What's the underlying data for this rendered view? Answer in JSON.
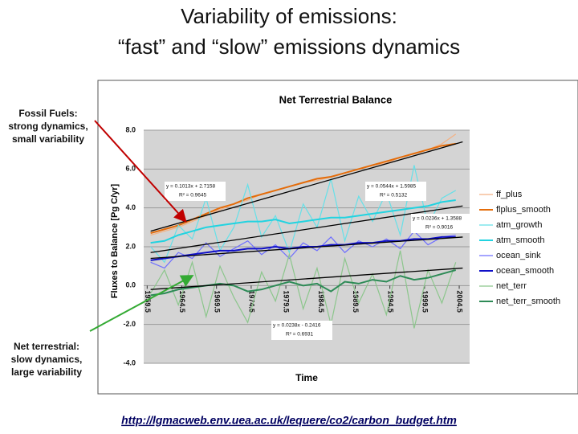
{
  "slide": {
    "title": [
      "Variability of emissions:",
      "“fast” and “slow” emissions dynamics"
    ],
    "note_top": [
      "Fossil Fuels:",
      "strong dynamics,",
      "small variability"
    ],
    "note_bottom": [
      "Net terrestrial:",
      "slow dynamics,",
      "large variability"
    ],
    "link": "http://lgmacweb.env.uea.ac.uk/lequere/co2/carbon_budget.htm"
  },
  "chart_data": {
    "type": "line",
    "title": "Net Terrestrial Balance",
    "x_label": "Time",
    "y_label": "Fluxes to Balance [Pg C/yr]",
    "x": [
      1960,
      1962,
      1964,
      1966,
      1968,
      1970,
      1972,
      1974,
      1976,
      1978,
      1980,
      1982,
      1984,
      1986,
      1988,
      1990,
      1992,
      1994,
      1996,
      1998,
      2000,
      2002,
      2004
    ],
    "series": [
      {
        "name": "ff_plus",
        "color": "#f4b183",
        "values": [
          2.6,
          2.8,
          3.0,
          3.3,
          3.6,
          3.9,
          4.2,
          4.4,
          4.7,
          4.9,
          5.1,
          5.3,
          5.4,
          5.6,
          5.8,
          6.0,
          6.2,
          6.3,
          6.6,
          6.8,
          7.0,
          7.3,
          7.8
        ]
      },
      {
        "name": "flplus_smooth",
        "color": "#e46c0a",
        "values": [
          2.7,
          2.9,
          3.1,
          3.4,
          3.7,
          4.0,
          4.2,
          4.5,
          4.7,
          4.9,
          5.1,
          5.3,
          5.5,
          5.6,
          5.8,
          6.0,
          6.2,
          6.4,
          6.6,
          6.8,
          7.0,
          7.2,
          7.3
        ]
      },
      {
        "name": "atm_growth",
        "color": "#66e0e8",
        "values": [
          2.0,
          1.2,
          3.1,
          2.4,
          4.5,
          1.8,
          3.0,
          5.2,
          2.5,
          3.6,
          1.7,
          4.2,
          3.0,
          5.5,
          2.3,
          4.6,
          3.3,
          4.8,
          2.6,
          6.2,
          3.1,
          4.5,
          4.9
        ]
      },
      {
        "name": "atm_smooth",
        "color": "#22d3e0",
        "values": [
          2.2,
          2.3,
          2.6,
          2.8,
          3.0,
          3.1,
          3.2,
          3.3,
          3.3,
          3.4,
          3.2,
          3.3,
          3.4,
          3.5,
          3.5,
          3.6,
          3.7,
          3.8,
          3.9,
          4.0,
          4.1,
          4.3,
          4.4
        ]
      },
      {
        "name": "ocean_sink",
        "color": "#6f6fff",
        "values": [
          1.2,
          0.9,
          1.7,
          1.4,
          2.2,
          1.5,
          1.9,
          2.3,
          1.6,
          2.1,
          1.4,
          2.2,
          1.8,
          2.5,
          1.7,
          2.3,
          2.0,
          2.4,
          1.9,
          2.8,
          2.1,
          2.5,
          2.6
        ]
      },
      {
        "name": "ocean_smooth",
        "color": "#1010c8",
        "values": [
          1.3,
          1.4,
          1.5,
          1.6,
          1.7,
          1.8,
          1.8,
          1.9,
          1.9,
          2.0,
          1.9,
          2.0,
          2.0,
          2.1,
          2.1,
          2.2,
          2.2,
          2.3,
          2.3,
          2.4,
          2.4,
          2.5,
          2.5
        ]
      },
      {
        "name": "net_terr",
        "color": "#8cc68c",
        "values": [
          -0.4,
          0.8,
          -1.0,
          1.2,
          -1.6,
          1.0,
          -0.6,
          -1.9,
          0.7,
          -0.8,
          1.6,
          -1.2,
          0.9,
          -2.0,
          1.4,
          -0.9,
          0.6,
          -1.5,
          1.8,
          -2.2,
          0.8,
          -0.9,
          1.2
        ]
      },
      {
        "name": "net_terr_smooth",
        "color": "#2e8b57",
        "values": [
          -0.5,
          -0.4,
          -0.2,
          -0.1,
          0.0,
          0.1,
          0.0,
          -0.3,
          -0.2,
          0.0,
          0.2,
          0.0,
          0.1,
          -0.3,
          0.2,
          0.1,
          0.3,
          0.2,
          0.5,
          0.3,
          0.4,
          0.6,
          0.8
        ]
      }
    ],
    "trendlines": [
      {
        "equation": "y = 0.1013x + 2.7158",
        "r2": "R² = 0.9645",
        "x": [
          1960,
          2005
        ],
        "values": [
          2.8,
          7.4
        ]
      },
      {
        "equation": "y = 0.0544x + 1.5985",
        "r2": "R² = 0.5132",
        "x": [
          1960,
          2005
        ],
        "values": [
          1.7,
          4.1
        ]
      },
      {
        "equation": "y = 0.0236x + 1.3588",
        "r2": "R² = 0.9016",
        "x": [
          1960,
          2005
        ],
        "values": [
          1.4,
          2.5
        ]
      },
      {
        "equation": "y = 0.0238x - 0.2416",
        "r2": "R² = 0.6931",
        "x": [
          1960,
          2005
        ],
        "values": [
          -0.2,
          0.9
        ]
      }
    ],
    "xlim": [
      1959,
      2006
    ],
    "xticks": [
      1959.5,
      1964.5,
      1969.5,
      1974.5,
      1979.5,
      1984.5,
      1989.5,
      1994.5,
      1999.5,
      2004.5
    ],
    "ylim": [
      -4,
      8
    ],
    "yticks": [
      {
        "value": -4,
        "label": "-4.0"
      },
      {
        "value": -2,
        "label": "-2.0"
      },
      {
        "value": 0,
        "label": "0.0"
      },
      {
        "value": 2,
        "label": "2.0"
      },
      {
        "value": 4,
        "label": "4.0"
      },
      {
        "value": 6,
        "label": "6.0"
      },
      {
        "value": 8,
        "label": "8.0"
      }
    ],
    "grid": true,
    "legend": "right"
  }
}
